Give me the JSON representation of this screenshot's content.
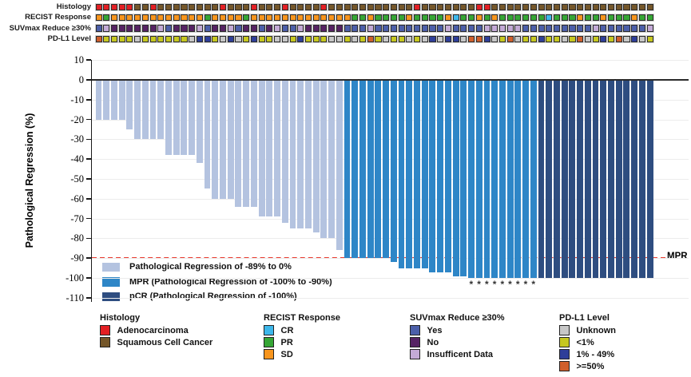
{
  "colors": {
    "bar_reg": "#b4c3e0",
    "bar_mpr": "#2e86c7",
    "bar_pcr": "#2e4d80",
    "mpr_line": "#e93b30",
    "axis": "#1a1a1a",
    "grid": "#ececec",
    "zero_line": "#2b2b2b",
    "histology": {
      "A": "#e32024",
      "S": "#75572a"
    },
    "recist": {
      "CR": "#3db7ea",
      "PR": "#36a635",
      "SD": "#f8951d"
    },
    "suvmax": {
      "Y": "#4c5fa9",
      "N": "#562364",
      "I": "#c3aad6"
    },
    "pdl1": {
      "U": "#c7c7c7",
      "<1": "#c6c720",
      "1-49": "#2e3e99",
      ">=50": "#d05f2c"
    }
  },
  "annotation_tracks": {
    "rows": [
      {
        "id": "histology",
        "label": "Histology",
        "palette": "histology",
        "values": [
          "A",
          "A",
          "A",
          "A",
          "A",
          "S",
          "S",
          "A",
          "S",
          "S",
          "S",
          "S",
          "S",
          "S",
          "S",
          "S",
          "A",
          "S",
          "S",
          "S",
          "A",
          "S",
          "S",
          "S",
          "A",
          "S",
          "S",
          "S",
          "S",
          "A",
          "S",
          "S",
          "S",
          "S",
          "S",
          "S",
          "S",
          "S",
          "S",
          "S",
          "S",
          "A",
          "S",
          "S",
          "S",
          "S",
          "S",
          "S",
          "S",
          "A",
          "A",
          "S",
          "S",
          "S",
          "S",
          "S",
          "S",
          "S",
          "S",
          "S",
          "S",
          "S",
          "S",
          "S",
          "S",
          "S",
          "S",
          "S",
          "S",
          "S",
          "S",
          "S"
        ]
      },
      {
        "id": "recist",
        "label": "RECIST Response",
        "palette": "recist",
        "values": [
          "SD",
          "PR",
          "SD",
          "SD",
          "SD",
          "SD",
          "SD",
          "SD",
          "SD",
          "SD",
          "SD",
          "SD",
          "SD",
          "SD",
          "PR",
          "SD",
          "SD",
          "SD",
          "SD",
          "PR",
          "SD",
          "SD",
          "SD",
          "SD",
          "SD",
          "SD",
          "SD",
          "SD",
          "SD",
          "SD",
          "SD",
          "SD",
          "SD",
          "PR",
          "PR",
          "SD",
          "PR",
          "PR",
          "PR",
          "PR",
          "SD",
          "PR",
          "PR",
          "PR",
          "PR",
          "SD",
          "CR",
          "PR",
          "PR",
          "SD",
          "PR",
          "SD",
          "PR",
          "PR",
          "PR",
          "PR",
          "PR",
          "PR",
          "CR",
          "PR",
          "PR",
          "PR",
          "SD",
          "PR",
          "PR",
          "SD",
          "PR",
          "PR",
          "PR",
          "SD",
          "PR",
          "PR"
        ]
      },
      {
        "id": "suvmax",
        "label": "SUVmax Reduce ≥30%",
        "palette": "suvmax",
        "values": [
          "Y",
          "I",
          "N",
          "N",
          "N",
          "N",
          "N",
          "N",
          "I",
          "Y",
          "N",
          "N",
          "N",
          "I",
          "Y",
          "N",
          "N",
          "I",
          "Y",
          "N",
          "N",
          "Y",
          "N",
          "I",
          "Y",
          "Y",
          "I",
          "N",
          "N",
          "N",
          "N",
          "N",
          "Y",
          "Y",
          "Y",
          "I",
          "Y",
          "Y",
          "Y",
          "Y",
          "Y",
          "Y",
          "Y",
          "Y",
          "Y",
          "I",
          "Y",
          "Y",
          "Y",
          "Y",
          "I",
          "I",
          "I",
          "I",
          "I",
          "Y",
          "Y",
          "Y",
          "Y",
          "Y",
          "Y",
          "Y",
          "Y",
          "Y",
          "I",
          "Y",
          "Y",
          "Y",
          "Y",
          "Y",
          "Y",
          "I"
        ]
      },
      {
        "id": "pdl1",
        "label": "PD-L1 Level",
        "palette": "pdl1",
        "values": [
          ">=50",
          "<1",
          "<1",
          "<1",
          "<1",
          "U",
          "<1",
          "<1",
          "<1",
          "<1",
          "<1",
          "<1",
          "U",
          "1-49",
          "1-49",
          "<1",
          "U",
          "1-49",
          "U",
          "<1",
          "1-49",
          "<1",
          "<1",
          "U",
          "U",
          "<1",
          "1-49",
          "<1",
          "<1",
          "<1",
          "U",
          "U",
          "<1",
          "U",
          "<1",
          ">=50",
          "<1",
          "U",
          "<1",
          "<1",
          "U",
          "<1",
          "U",
          "1-49",
          "U",
          "1-49",
          "1-49",
          "U",
          ">=50",
          ">=50",
          "1-49",
          "U",
          "<1",
          ">=50",
          "U",
          "<1",
          "<1",
          "1-49",
          "<1",
          "<1",
          "U",
          "<1",
          ">=50",
          "U",
          "<1",
          "1-49",
          "<1",
          ">=50",
          "U",
          "1-49",
          "U",
          "<1"
        ]
      }
    ]
  },
  "chart_data": {
    "type": "bar",
    "title": "",
    "ylabel": "Pathological Regression (%)",
    "ylim": [
      -110,
      10
    ],
    "yticks": [
      10,
      0,
      -10,
      -20,
      -30,
      -40,
      -50,
      -60,
      -70,
      -80,
      -90,
      -100,
      -110
    ],
    "grid": "faint horizontal",
    "values": [
      -20,
      -20,
      -20,
      -20,
      -25,
      -30,
      -30,
      -30,
      -30,
      -38,
      -38,
      -38,
      -38,
      -42,
      -55,
      -60,
      -60,
      -60,
      -64,
      -64,
      -64,
      -69,
      -69,
      -69,
      -72,
      -75,
      -75,
      -75,
      -77,
      -80,
      -80,
      -86,
      -90,
      -90,
      -90,
      -90,
      -90,
      -90,
      -92,
      -95,
      -95,
      -95,
      -95,
      -97,
      -97,
      -97,
      -99,
      -99,
      -100,
      -100,
      -100,
      -100,
      -100,
      -100,
      -100,
      -100,
      -100,
      -100,
      -100,
      -100,
      -100,
      -100,
      -100,
      -100,
      -100,
      -100,
      -100,
      -100,
      -100,
      -100,
      -100,
      -100
    ],
    "bar_categories": [
      "reg",
      "reg",
      "reg",
      "reg",
      "reg",
      "reg",
      "reg",
      "reg",
      "reg",
      "reg",
      "reg",
      "reg",
      "reg",
      "reg",
      "reg",
      "reg",
      "reg",
      "reg",
      "reg",
      "reg",
      "reg",
      "reg",
      "reg",
      "reg",
      "reg",
      "reg",
      "reg",
      "reg",
      "reg",
      "reg",
      "reg",
      "reg",
      "mpr",
      "mpr",
      "mpr",
      "mpr",
      "mpr",
      "mpr",
      "mpr",
      "mpr",
      "mpr",
      "mpr",
      "mpr",
      "mpr",
      "mpr",
      "mpr",
      "mpr",
      "mpr",
      "mpr",
      "mpr",
      "mpr",
      "mpr",
      "mpr",
      "mpr",
      "mpr",
      "mpr",
      "mpr",
      "pcr",
      "pcr",
      "pcr",
      "pcr",
      "pcr",
      "pcr",
      "pcr",
      "pcr",
      "pcr",
      "pcr",
      "pcr",
      "pcr",
      "pcr",
      "pcr",
      "pcr"
    ],
    "asterisk_columns": [
      49,
      50,
      51,
      52,
      53,
      54,
      55,
      56,
      57
    ],
    "asterisk_marker": "*",
    "mpr_line": {
      "y": -90,
      "label": "MPR"
    },
    "legend": [
      {
        "swatch": "bar_reg",
        "label": "Pathological Regression of -89% to 0%"
      },
      {
        "swatch": "bar_mpr",
        "label": "MPR (Pathological Regression of -100% to -90%)"
      },
      {
        "swatch": "bar_pcr",
        "label": "pCR (Pathological Regression of -100%)"
      }
    ]
  },
  "bottom_legend": {
    "groups": [
      {
        "title": "Histology",
        "palette": "histology",
        "items": [
          {
            "key": "A",
            "label": "Adenocarcinoma"
          },
          {
            "key": "S",
            "label": "Squamous Cell Cancer"
          }
        ]
      },
      {
        "title": "RECIST Response",
        "palette": "recist",
        "items": [
          {
            "key": "CR",
            "label": "CR"
          },
          {
            "key": "PR",
            "label": "PR"
          },
          {
            "key": "SD",
            "label": "SD"
          }
        ]
      },
      {
        "title": "SUVmax Reduce ≥30%",
        "palette": "suvmax",
        "items": [
          {
            "key": "Y",
            "label": "Yes"
          },
          {
            "key": "N",
            "label": "No"
          },
          {
            "key": "I",
            "label": "Insufficent Data"
          }
        ]
      },
      {
        "title": "PD-L1 Level",
        "palette": "pdl1",
        "items": [
          {
            "key": "U",
            "label": "Unknown"
          },
          {
            "key": "<1",
            "label": "<1%"
          },
          {
            "key": "1-49",
            "label": "1% - 49%"
          },
          {
            "key": ">=50",
            "label": ">=50%"
          }
        ]
      }
    ]
  }
}
